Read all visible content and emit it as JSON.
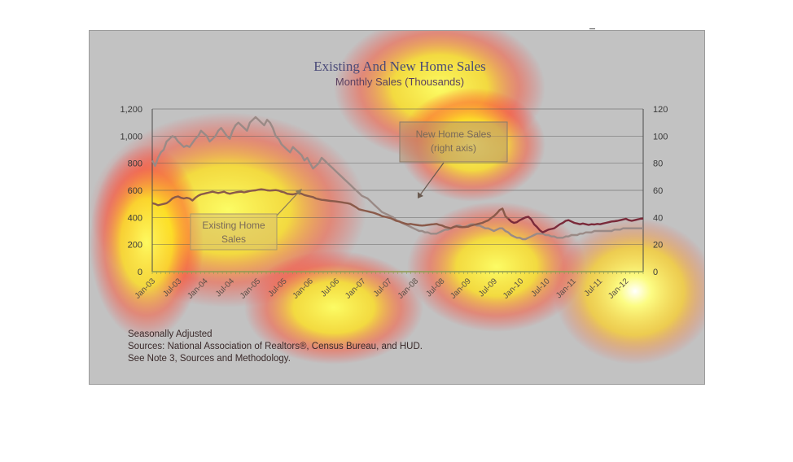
{
  "colors": {
    "existing_line": "#8a5a4a",
    "existing_line_recent": "#7a2a3a",
    "new_line": "#9a8a86",
    "frame_bg": "#c2c2c2"
  },
  "chart_data": {
    "type": "line",
    "title": "Existing And New Home Sales",
    "subtitle": "Monthly Sales (Thousands)",
    "left_axis": {
      "ylim": [
        0,
        1200
      ],
      "ticks": [
        "0",
        "200",
        "400",
        "600",
        "800",
        "1,000",
        "1,200"
      ]
    },
    "right_axis": {
      "ylim": [
        0,
        120
      ],
      "ticks": [
        "0",
        "20",
        "40",
        "60",
        "80",
        "100",
        "120"
      ]
    },
    "x_tick_labels": [
      "Jan-03",
      "Jul-03",
      "Jan-04",
      "Jul-04",
      "Jan-05",
      "Jul-05",
      "Jan-06",
      "Jul-06",
      "Jan-07",
      "Jul-07",
      "Jan-08",
      "Jul-08",
      "Jan-09",
      "Jul-09",
      "Jan-10",
      "Jul-10",
      "Jan-11",
      "Jul-11",
      "Jan-12"
    ],
    "x_range": [
      "2003-01",
      "2012-05"
    ],
    "grid": true,
    "series": [
      {
        "name": "Existing Home Sales",
        "axis": "left",
        "values": [
          505,
          500,
          490,
          495,
          500,
          505,
          520,
          540,
          550,
          555,
          545,
          540,
          545,
          540,
          525,
          545,
          560,
          570,
          575,
          580,
          585,
          590,
          585,
          580,
          585,
          590,
          580,
          575,
          580,
          585,
          588,
          590,
          585,
          590,
          595,
          598,
          600,
          605,
          608,
          605,
          600,
          598,
          600,
          602,
          598,
          590,
          585,
          575,
          572,
          570,
          575,
          580,
          575,
          565,
          560,
          555,
          550,
          540,
          535,
          530,
          528,
          525,
          522,
          520,
          518,
          515,
          512,
          508,
          505,
          500,
          488,
          475,
          460,
          455,
          450,
          445,
          440,
          435,
          428,
          420,
          410,
          405,
          400,
          395,
          385,
          375,
          370,
          362,
          355,
          350,
          352,
          348,
          345,
          342,
          340,
          342,
          345,
          348,
          350,
          352,
          345,
          340,
          330,
          325,
          320,
          330,
          335,
          330,
          328,
          330,
          332,
          340,
          345,
          350,
          355,
          360,
          370,
          378,
          395,
          410,
          430,
          455,
          465,
          410,
          390,
          370,
          360,
          365,
          380,
          390,
          400,
          405,
          385,
          350,
          330,
          305,
          290,
          300,
          310,
          315,
          320,
          335,
          350,
          360,
          375,
          380,
          370,
          360,
          355,
          350,
          355,
          350,
          345,
          350,
          348,
          352,
          350,
          355,
          360,
          365,
          370,
          372,
          375,
          380,
          385,
          390,
          380,
          375,
          380,
          385,
          390,
          392
        ]
      },
      {
        "name": "New Home Sales (right axis)",
        "axis": "right",
        "values": [
          82,
          78,
          84,
          88,
          90,
          96,
          98,
          100,
          99,
          96,
          94,
          92,
          93,
          92,
          95,
          98,
          100,
          104,
          102,
          100,
          96,
          98,
          100,
          104,
          106,
          103,
          100,
          98,
          104,
          108,
          110,
          108,
          106,
          104,
          110,
          112,
          114,
          112,
          110,
          108,
          112,
          110,
          106,
          100,
          98,
          94,
          92,
          90,
          88,
          92,
          90,
          88,
          86,
          82,
          84,
          80,
          76,
          78,
          80,
          84,
          82,
          80,
          78,
          76,
          74,
          72,
          70,
          68,
          66,
          64,
          62,
          60,
          58,
          56,
          55,
          54,
          52,
          50,
          48,
          46,
          44,
          43,
          42,
          41,
          40,
          38,
          37,
          36,
          35,
          34,
          33,
          32,
          31,
          30,
          30,
          29,
          29,
          28,
          28,
          28,
          29,
          30,
          31,
          31,
          32,
          33,
          34,
          34,
          33,
          33,
          34,
          35,
          35,
          34,
          34,
          33,
          32,
          32,
          31,
          30,
          31,
          32,
          32,
          30,
          29,
          27,
          26,
          25,
          25,
          24,
          24,
          25,
          26,
          27,
          28,
          28,
          28,
          27,
          27,
          26,
          26,
          25,
          25,
          25,
          26,
          26,
          27,
          27,
          27,
          28,
          28,
          29,
          29,
          29,
          30,
          30,
          30,
          30,
          30,
          30,
          30,
          31,
          31,
          31,
          32,
          32,
          32,
          32,
          32,
          32,
          32,
          32
        ]
      }
    ],
    "annotations": [
      {
        "name": "new-home-sales-callout",
        "lines": [
          "New Home Sales",
          "(right axis)"
        ]
      },
      {
        "name": "existing-home-sales-callout",
        "lines": [
          "Existing Home",
          "Sales"
        ]
      }
    ]
  },
  "footnotes": {
    "line1": "Seasonally Adjusted",
    "line2": "Sources:  National Association of Realtors®, Census Bureau, and HUD.",
    "line3": "See Note 3, Sources and Methodology."
  }
}
